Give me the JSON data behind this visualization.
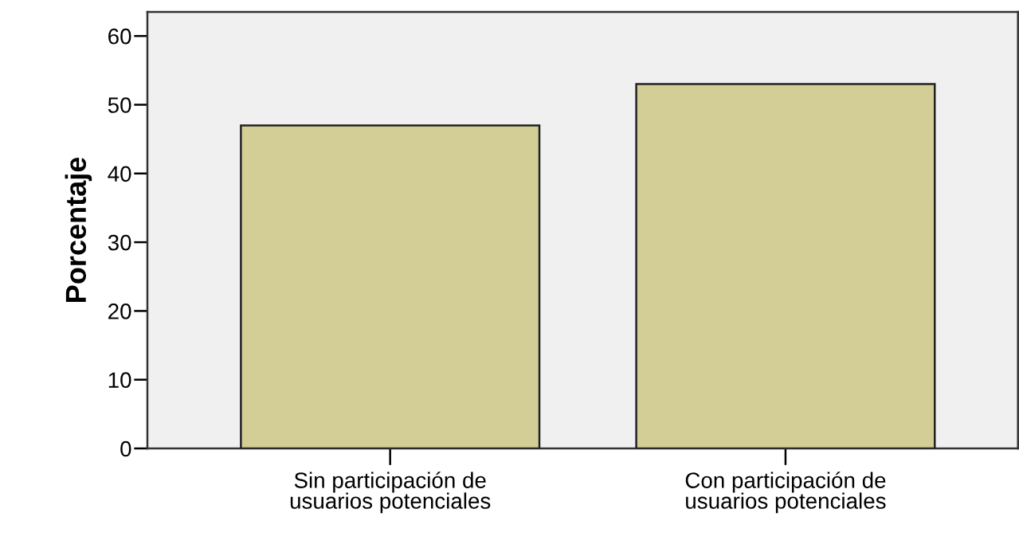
{
  "chart_data": {
    "type": "bar",
    "ylabel": "Porcentaje",
    "categories": [
      "Sin participación de\nusuarios potenciales",
      "Con participación de\nusuarios potenciales"
    ],
    "values": [
      47,
      53
    ],
    "color": "#d3cd96",
    "ylim": [
      0,
      63.5
    ],
    "yticks": [
      0,
      10,
      20,
      30,
      40,
      50,
      60
    ],
    "grid": false
  }
}
